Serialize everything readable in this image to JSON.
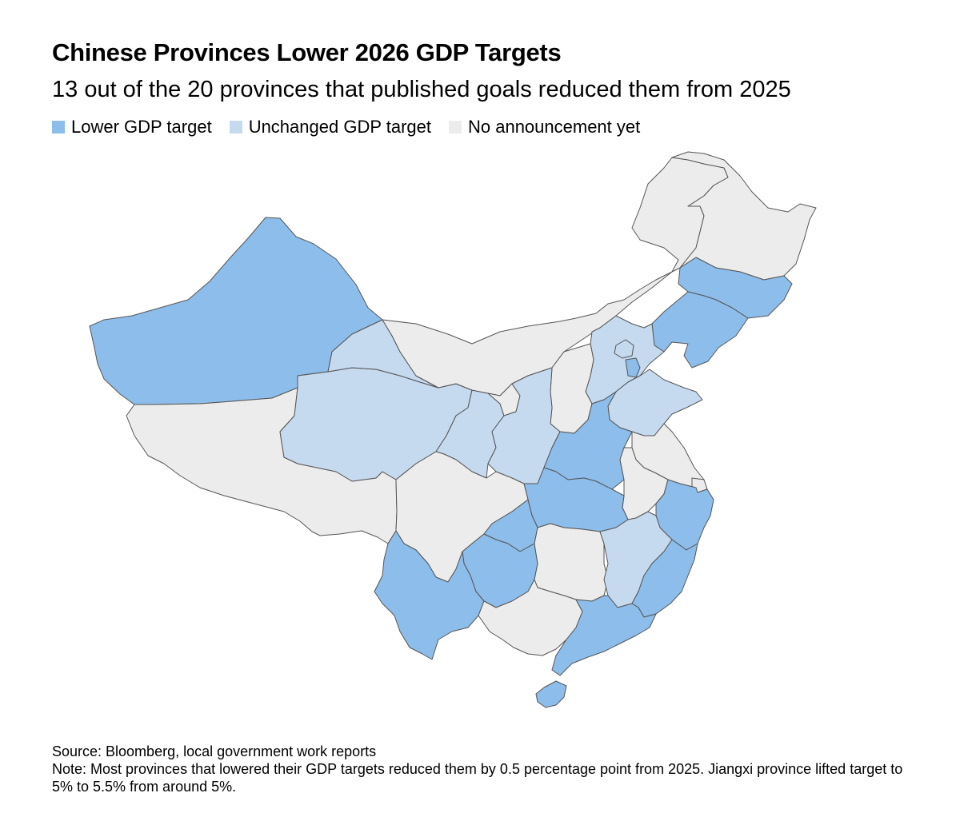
{
  "title": "Chinese Provinces Lower 2026 GDP Targets",
  "subtitle": "13 out of the 20 provinces that published goals reduced them from 2025",
  "legend": {
    "lower": {
      "label": "Lower GDP target",
      "color": "#8dbdea"
    },
    "unchanged": {
      "label": "Unchanged GDP target",
      "color": "#c5d9ef"
    },
    "none": {
      "label": "No announcement yet",
      "color": "#ececec"
    }
  },
  "colors": {
    "lower": "#8dbdea",
    "unchanged": "#c5d9ef",
    "none": "#ececec",
    "border": "#555555"
  },
  "source": "Source: Bloomberg, local government work reports",
  "note": "Note: Most provinces that lowered their GDP targets reduced them by 0.5 percentage point from 2025. Jiangxi province lifted target to 5% to 5.5% from around 5%.",
  "regions": {
    "xinjiang": "lower",
    "tibet": "none",
    "qinghai": "unchanged",
    "gansu": "unchanged",
    "inner_mongolia": "none",
    "heilongjiang": "none",
    "jilin": "lower",
    "liaoning": "lower",
    "hebei": "unchanged",
    "beijing": "unchanged",
    "tianjin": "lower",
    "shandong": "unchanged",
    "shanxi": "none",
    "shaanxi": "unchanged",
    "ningxia": "none",
    "henan": "lower",
    "hubei": "lower",
    "sichuan": "none",
    "chongqing": "lower",
    "guizhou": "lower",
    "yunnan": "lower",
    "hunan": "none",
    "jiangxi": "unchanged",
    "anhui": "none",
    "jiangsu": "none",
    "shanghai": "none",
    "zhejiang": "lower",
    "fujian": "lower",
    "guangdong": "lower",
    "guangxi": "none",
    "hainan": "lower"
  }
}
